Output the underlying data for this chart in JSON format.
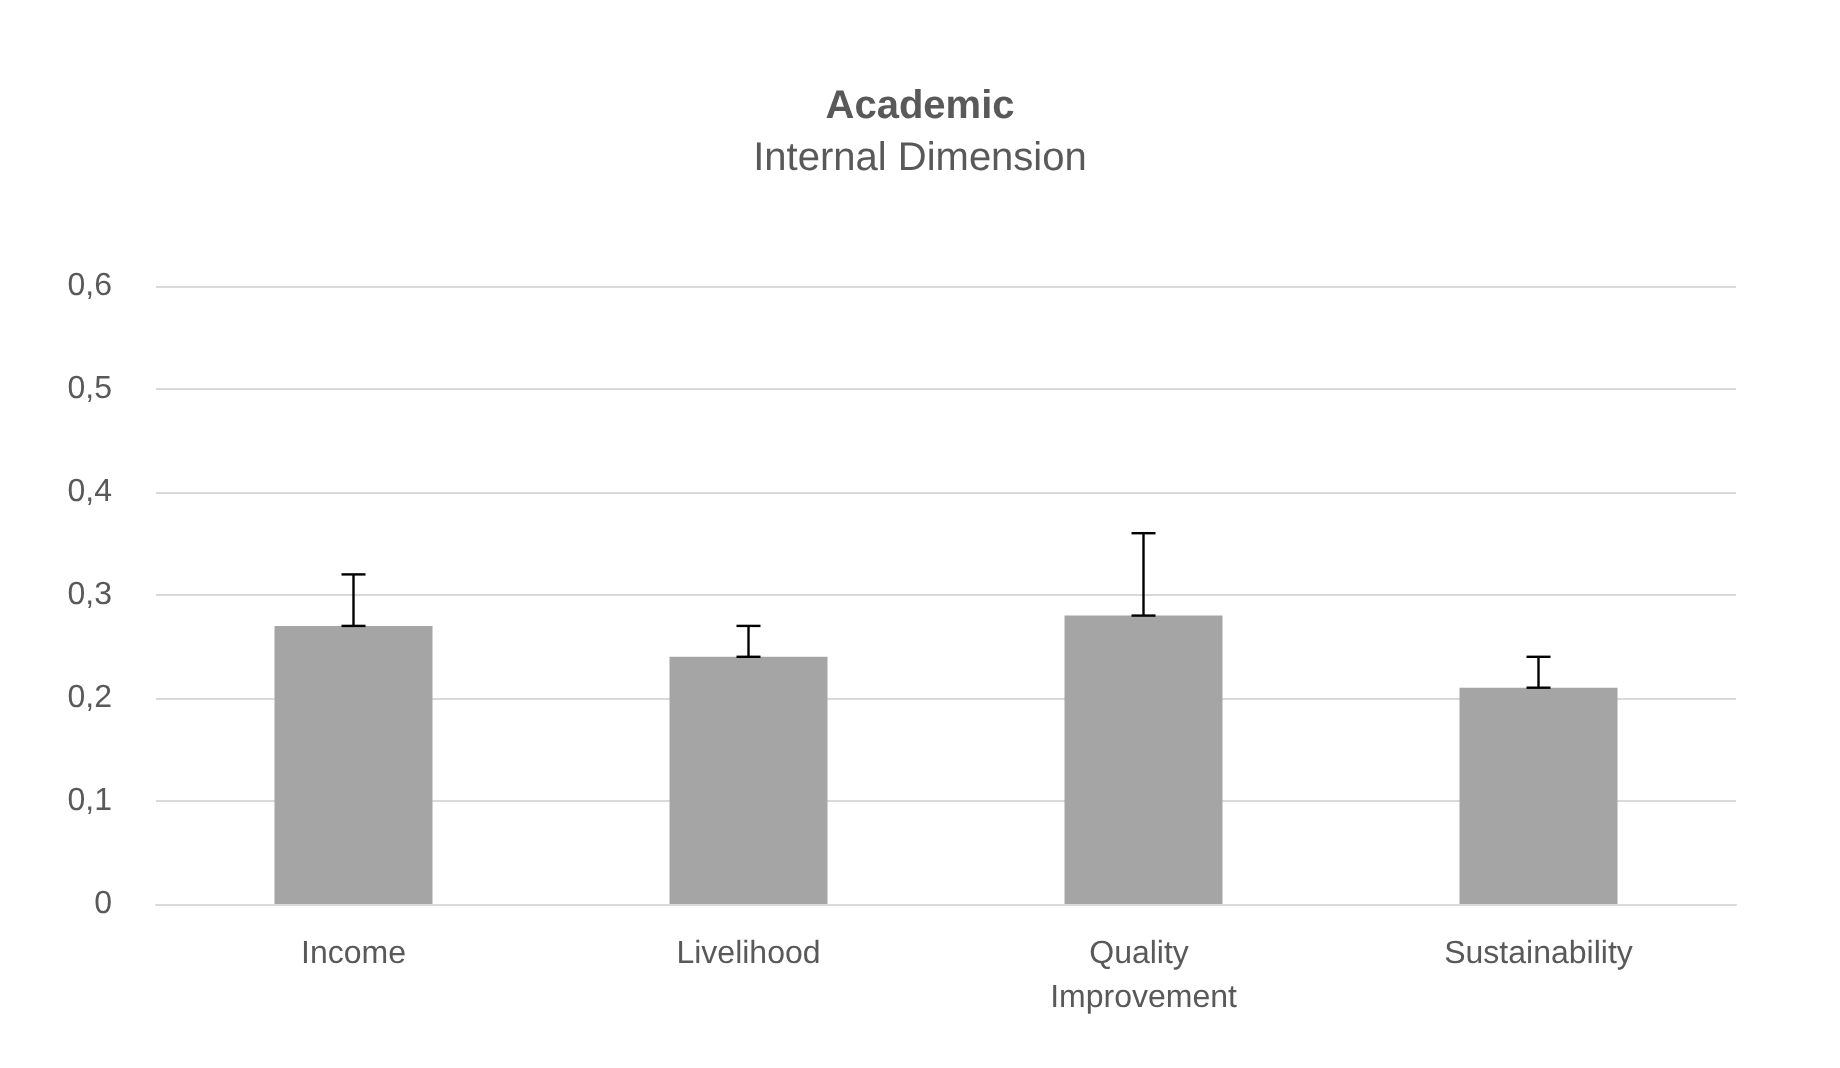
{
  "chart_data": {
    "type": "bar",
    "title": "Academic",
    "subtitle": "Internal Dimension",
    "categories": [
      "Income",
      "Livelihood",
      "Quality Improvement",
      "Sustainability"
    ],
    "values": [
      0.27,
      0.24,
      0.28,
      0.21
    ],
    "color": "#a5a5a5",
    "errors": [
      [
        0.27,
        0.32
      ],
      [
        0.24,
        0.27
      ],
      [
        0.28,
        0.36
      ],
      [
        0.21,
        0.24
      ]
    ],
    "ylim": [
      0,
      0.6
    ],
    "yticks": [
      {
        "value": 0,
        "label": "0"
      },
      {
        "value": 0.1,
        "label": "0,1"
      },
      {
        "value": 0.2,
        "label": "0,2"
      },
      {
        "value": 0.3,
        "label": "0,3"
      },
      {
        "value": 0.4,
        "label": "0,4"
      },
      {
        "value": 0.5,
        "label": "0,5"
      },
      {
        "value": 0.6,
        "label": "0,6"
      }
    ],
    "grid": "y"
  }
}
